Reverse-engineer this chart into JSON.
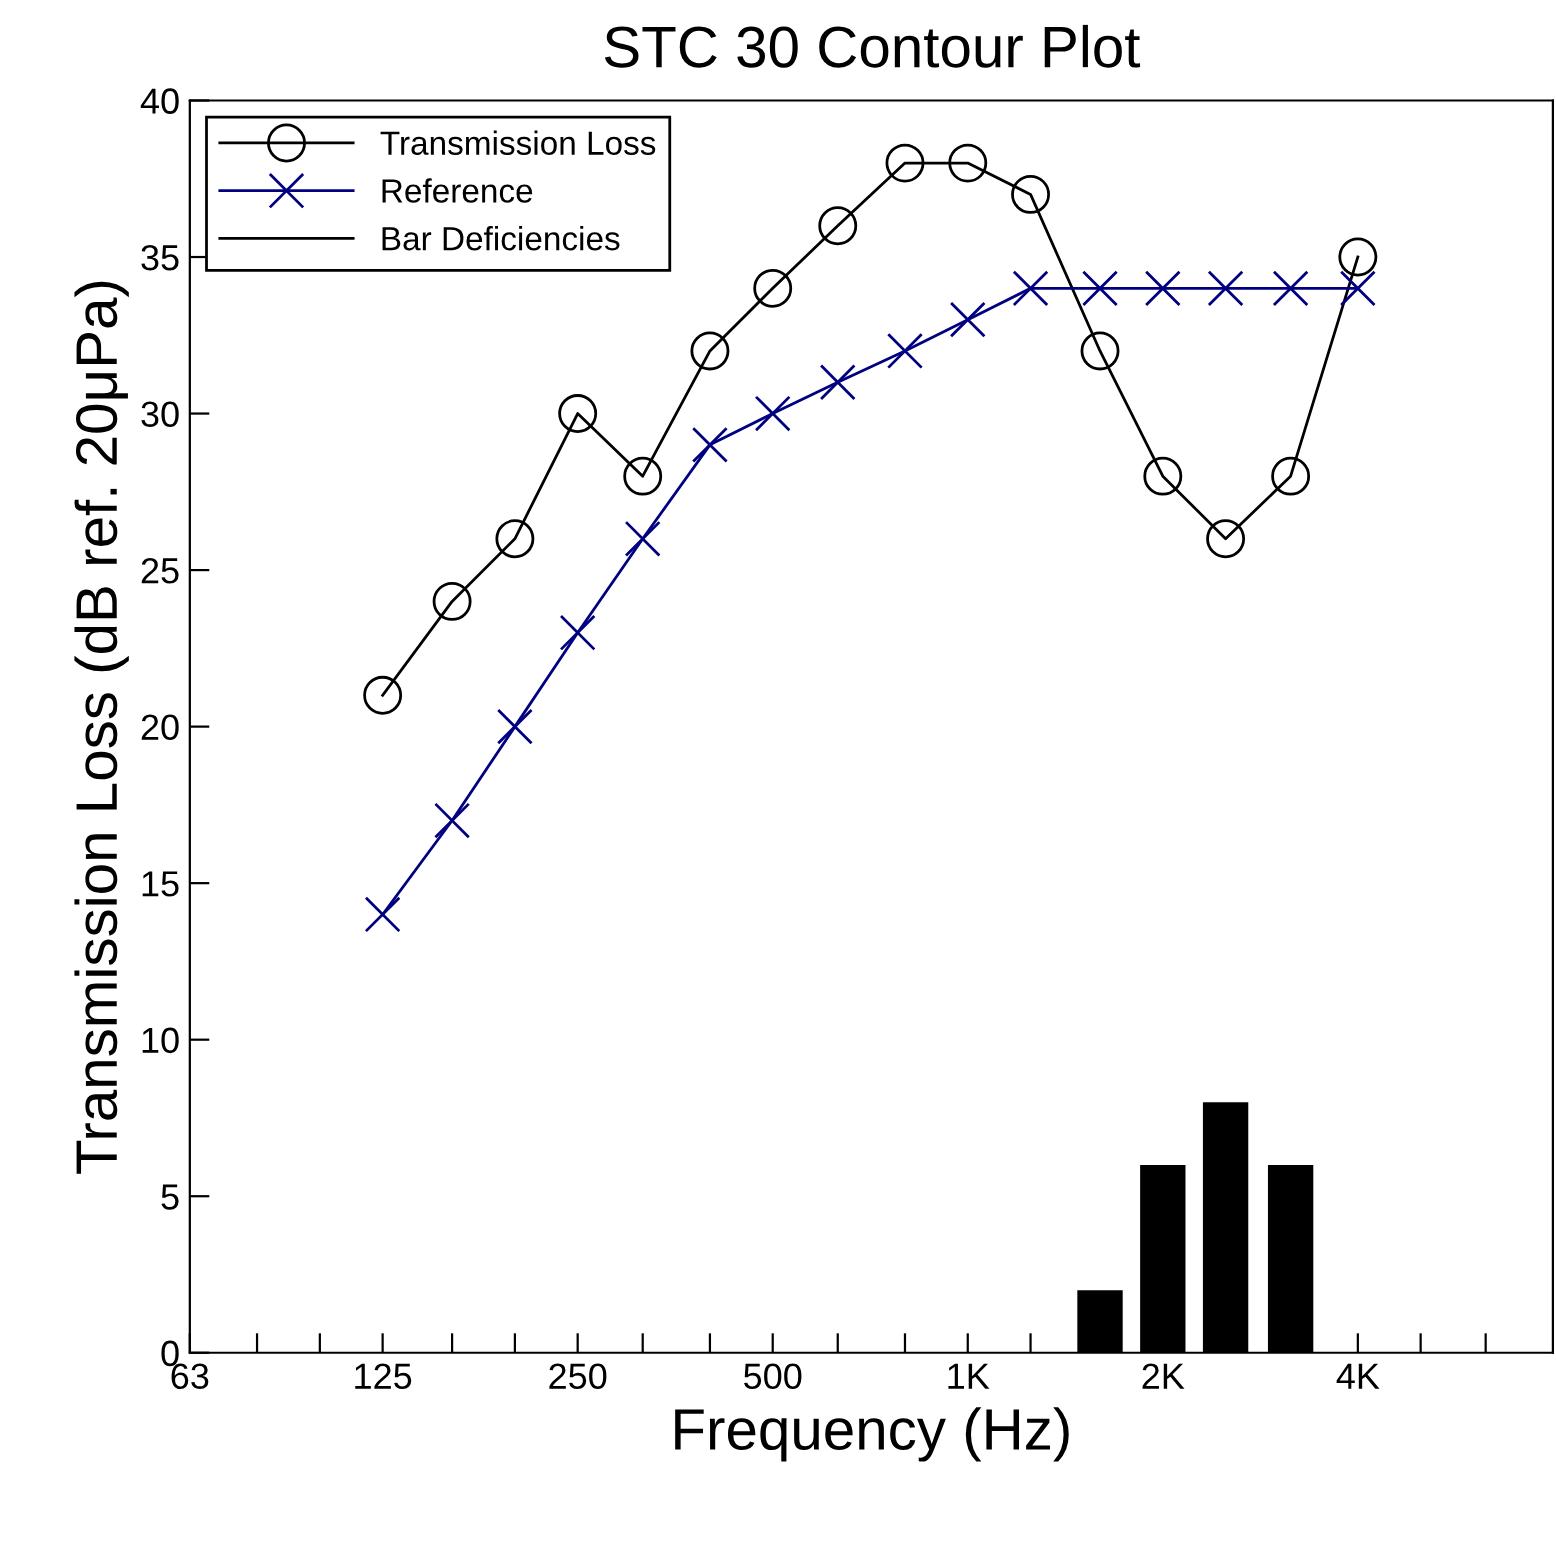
{
  "chart_data": {
    "type": "line",
    "title": "STC 30 Contour Plot",
    "xlabel": "Frequency (Hz)",
    "ylabel": "Transmission Loss (dB ref. 20μPa)",
    "log": "x",
    "xlim": [
      63,
      8000
    ],
    "ylim": [
      0,
      40
    ],
    "xticks": [
      63,
      {
        "value": 80,
        "label": null
      },
      {
        "value": 100,
        "label": null
      },
      125,
      {
        "value": 160,
        "label": null
      },
      {
        "value": 200,
        "label": null
      },
      250,
      {
        "value": 315,
        "label": null
      },
      {
        "value": 400,
        "label": null
      },
      500,
      {
        "value": 630,
        "label": null
      },
      {
        "value": 800,
        "label": null
      },
      {
        "value": 1000,
        "label": "1K"
      },
      {
        "value": 1250,
        "label": null
      },
      {
        "value": 1600,
        "label": null
      },
      {
        "value": 2000,
        "label": "2K"
      },
      {
        "value": 2500,
        "label": null
      },
      {
        "value": 3150,
        "label": null
      },
      {
        "value": 4000,
        "label": "4K"
      },
      {
        "value": 5000,
        "label": null
      },
      {
        "value": 6300,
        "label": null
      }
    ],
    "yticks": [
      0,
      5,
      10,
      15,
      20,
      25,
      30,
      35,
      40
    ],
    "grid": false,
    "legend": "top left",
    "series": [
      {
        "name": "Transmission Loss",
        "color": "#000000",
        "marker": "circle",
        "x": [
          125,
          160,
          200,
          250,
          315,
          400,
          500,
          630,
          800,
          1000,
          1250,
          1600,
          2000,
          2500,
          3150,
          4000
        ],
        "values": [
          21,
          24,
          26,
          30,
          28,
          32,
          34,
          36,
          38,
          38,
          37,
          32,
          28,
          26,
          28,
          35
        ]
      },
      {
        "name": "Reference",
        "color": "#000080",
        "marker": "cross",
        "x": [
          125,
          160,
          200,
          250,
          315,
          400,
          500,
          630,
          800,
          1000,
          1250,
          1600,
          2000,
          2500,
          3150,
          4000
        ],
        "values": [
          14,
          17,
          20,
          23,
          26,
          29,
          30,
          31,
          32,
          33,
          34,
          34,
          34,
          34,
          34,
          34
        ]
      },
      {
        "name": "Bar Deficiencies",
        "type": "bar",
        "color": "#000000",
        "x": [
          1600,
          2000,
          2500,
          3150
        ],
        "values": [
          2,
          6,
          8,
          6
        ]
      }
    ]
  }
}
